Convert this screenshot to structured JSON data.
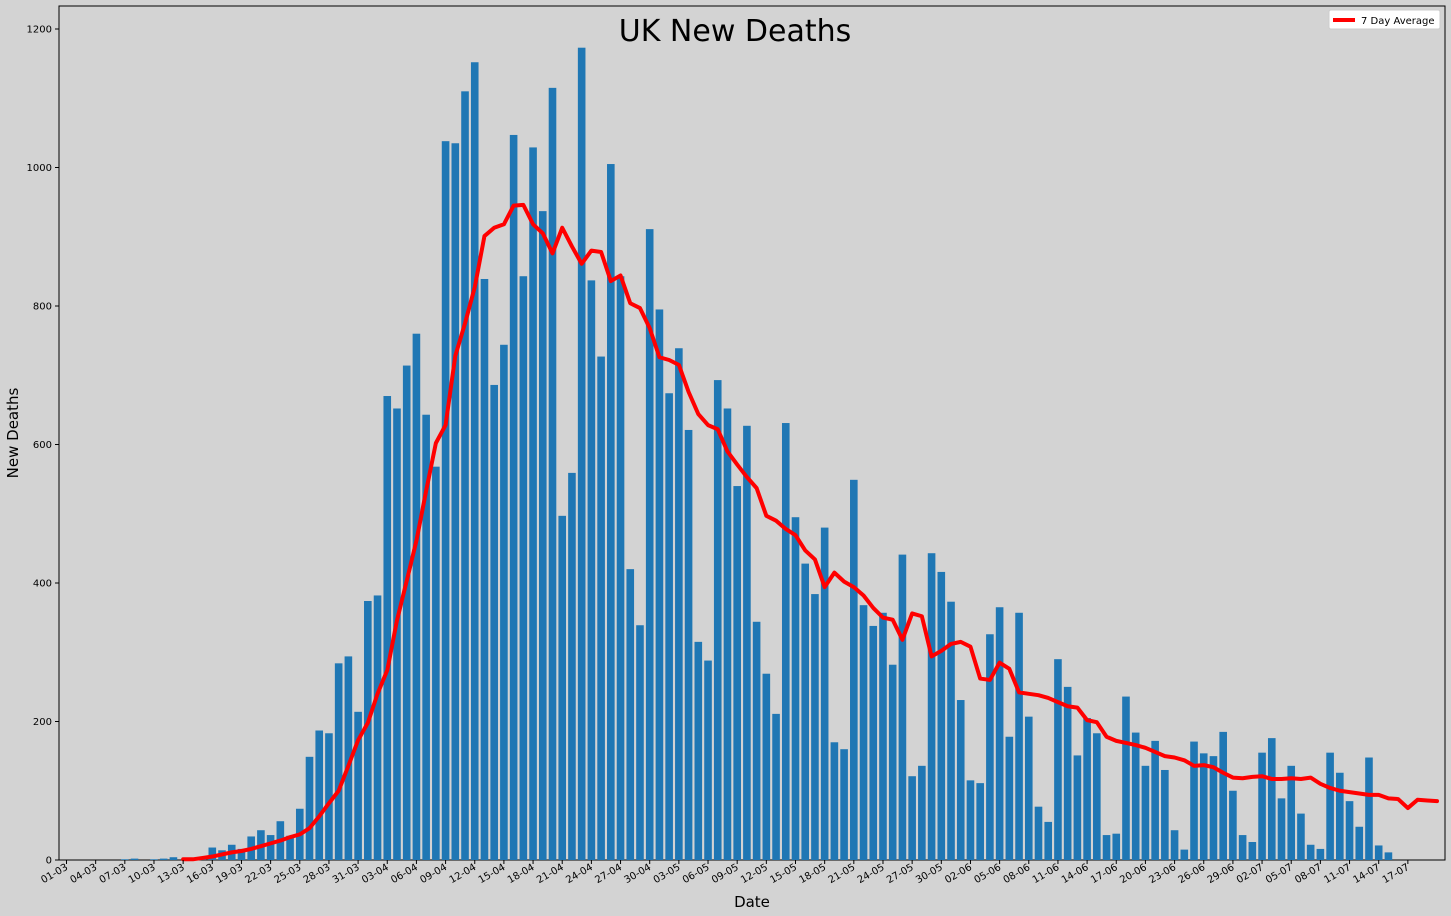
{
  "chart_data": {
    "type": "bar",
    "title": "UK New Deaths",
    "xlabel": "Date",
    "ylabel": "New Deaths",
    "ylim": [
      0,
      1230
    ],
    "yticks": [
      0,
      200,
      400,
      600,
      800,
      1000,
      1200
    ],
    "xticks": [
      "01-03",
      "04-03",
      "07-03",
      "10-03",
      "13-03",
      "16-03",
      "19-03",
      "22-03",
      "25-03",
      "28-03",
      "31-03",
      "03-04",
      "06-04",
      "09-04",
      "12-04",
      "15-04",
      "18-04",
      "21-04",
      "24-04",
      "27-04",
      "30-04",
      "03-05",
      "06-05",
      "09-05",
      "12-05",
      "15-05",
      "18-05",
      "21-05",
      "24-05",
      "27-05",
      "30-05",
      "02-06",
      "05-06",
      "08-06",
      "11-06",
      "14-06",
      "17-06",
      "20-06",
      "23-06",
      "26-06",
      "29-06",
      "02-07",
      "05-07",
      "08-07",
      "11-07",
      "14-07",
      "17-07"
    ],
    "grid": false,
    "legend_position": "top-right",
    "series": [
      {
        "type": "bar",
        "color": "#1f77b4",
        "start_date": "2020-03-01",
        "values": [
          0,
          0,
          0,
          0,
          0,
          0,
          1,
          2,
          0,
          1,
          2,
          4,
          0,
          1,
          2,
          18,
          14,
          22,
          16,
          34,
          43,
          36,
          56,
          35,
          74,
          149,
          187,
          183,
          284,
          294,
          214,
          374,
          382,
          670,
          652,
          714,
          760,
          643,
          568,
          1038,
          1035,
          1110,
          1152,
          839,
          686,
          744,
          1047,
          843,
          1029,
          937,
          1115,
          497,
          559,
          1173,
          837,
          727,
          1005,
          843,
          420,
          339,
          911,
          795,
          674,
          739,
          621,
          315,
          288,
          693,
          652,
          540,
          627,
          344,
          269,
          211,
          631,
          495,
          428,
          384,
          480,
          170,
          160,
          549,
          368,
          338,
          357,
          282,
          441,
          121,
          136,
          443,
          416,
          373,
          231,
          115,
          111,
          326,
          365,
          178,
          357,
          207,
          77,
          55,
          290,
          250,
          151,
          205,
          183,
          36,
          38,
          236,
          184,
          136,
          172,
          130,
          43,
          15,
          171,
          154,
          150,
          185,
          100,
          36,
          26,
          155,
          176,
          89,
          136,
          67,
          22,
          16,
          155,
          126,
          85,
          48,
          148,
          21,
          11
        ]
      },
      {
        "type": "line",
        "name": "7 Day Average",
        "color": "#ff0000",
        "start_date": "2020-03-13",
        "values": [
          1,
          1,
          3,
          5,
          8,
          11,
          13,
          16,
          20,
          24,
          28,
          33,
          37,
          46,
          63,
          82,
          100,
          136,
          173,
          198,
          240,
          274,
          346,
          403,
          461,
          533,
          602,
          628,
          728,
          775,
          827,
          901,
          913,
          918,
          945,
          946,
          918,
          905,
          876,
          913,
          886,
          861,
          880,
          878,
          836,
          844,
          804,
          797,
          768,
          726,
          722,
          715,
          676,
          644,
          628,
          622,
          590,
          571,
          553,
          537,
          497,
          490,
          478,
          469,
          447,
          434,
          394,
          415,
          402,
          394,
          382,
          364,
          350,
          347,
          318,
          356,
          352,
          294,
          302,
          312,
          315,
          308,
          262,
          260,
          285,
          276,
          242,
          240,
          238,
          234,
          228,
          222,
          220,
          202,
          199,
          178,
          172,
          169,
          166,
          162,
          156,
          150,
          148,
          144,
          136,
          137,
          134,
          126,
          119,
          118,
          120,
          121,
          117,
          117,
          118,
          117,
          119,
          110,
          104,
          100,
          98,
          96,
          94,
          94,
          89,
          88,
          75,
          87,
          86,
          85
        ]
      }
    ]
  }
}
